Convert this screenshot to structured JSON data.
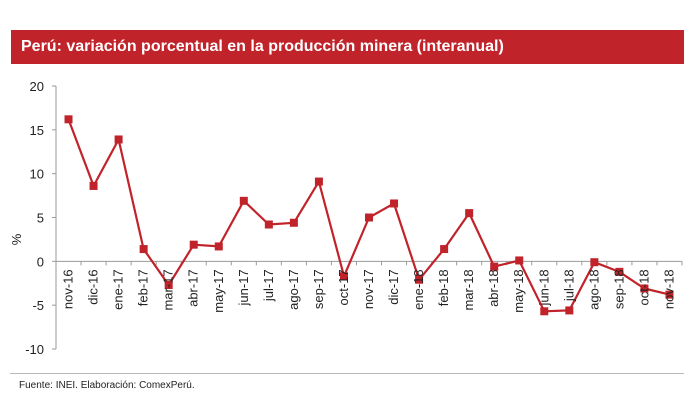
{
  "chart_data": {
    "type": "line",
    "title": "Perú: variación porcentual en la producción minera (interanual)",
    "ylabel": "%",
    "xlabel": "",
    "ylim": [
      -10,
      20
    ],
    "yticks": [
      -10,
      -5,
      0,
      5,
      10,
      15,
      20
    ],
    "grid": false,
    "categories": [
      "nov-16",
      "dic-16",
      "ene-17",
      "feb-17",
      "mar-17",
      "abr-17",
      "may-17",
      "jun-17",
      "jul-17",
      "ago-17",
      "sep-17",
      "oct-17",
      "nov-17",
      "dic-17",
      "ene-18",
      "feb-18",
      "mar-18",
      "abr-18",
      "may-18",
      "jun-18",
      "jul-18",
      "ago-18",
      "sep-18",
      "oct-18",
      "nov-18"
    ],
    "series": [
      {
        "values": [
          16.2,
          8.6,
          13.9,
          1.4,
          -2.7,
          1.9,
          1.7,
          6.9,
          4.2,
          4.4,
          9.1,
          -1.7,
          5.0,
          6.6,
          -2.1,
          1.4,
          5.5,
          -0.6,
          0.1,
          -5.7,
          -5.6,
          -0.1,
          -1.2,
          -3.1,
          -3.8
        ]
      }
    ],
    "line_color": "#c1232a"
  },
  "footer": {
    "source": "Fuente: INEI. Elaboración: ComexPerú."
  }
}
